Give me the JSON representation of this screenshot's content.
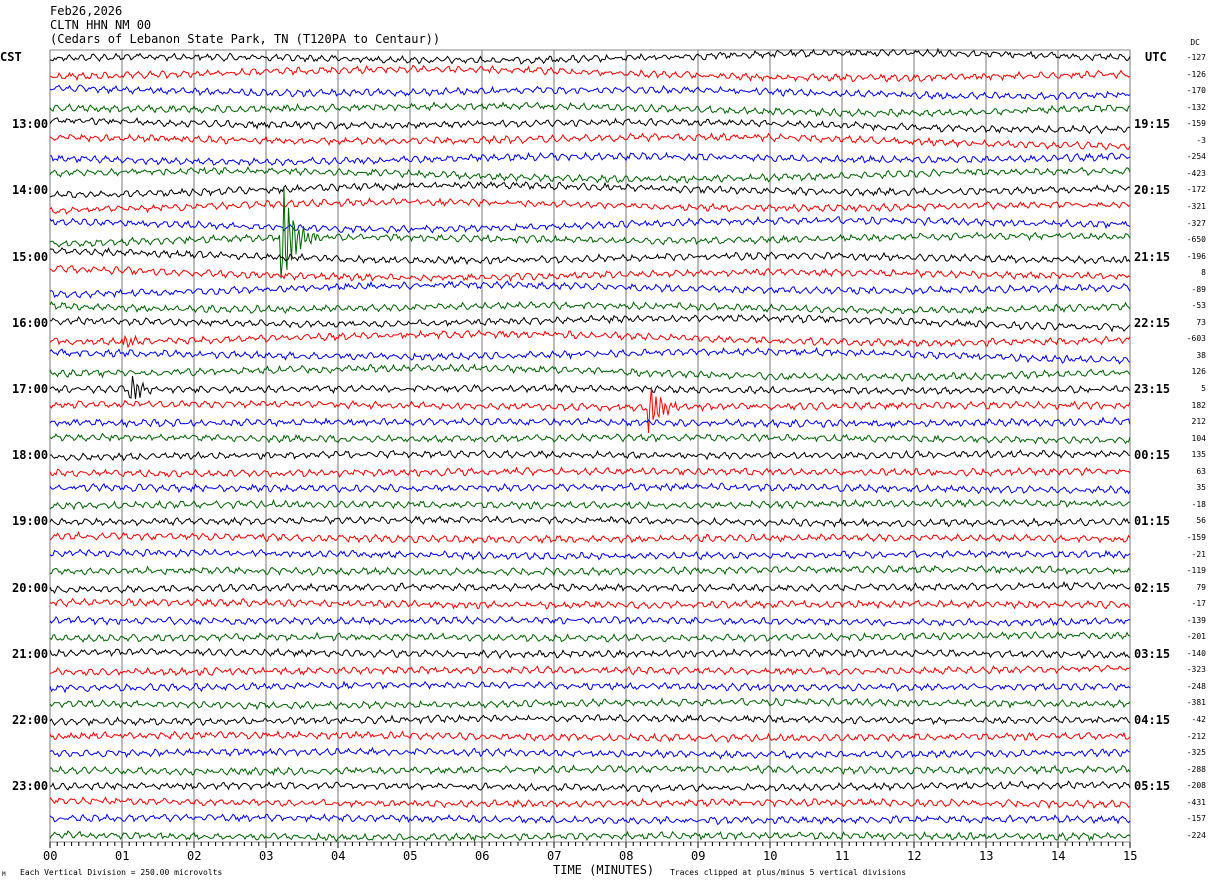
{
  "header": {
    "date": "Feb26,2026",
    "station": "CLTN HHN NM 00",
    "location": "(Cedars of Lebanon State Park, TN (T120PA to Centaur))"
  },
  "left_tz": "CST",
  "right_tz": "UTC",
  "dc_label": "DC",
  "footer": {
    "scale": "Each Vertical Division =  250.00 microvolts",
    "xlabel": "TIME (MINUTES)",
    "clip": "Traces clipped at plus/minus 5 vertical divisions",
    "corner": "M"
  },
  "chart_data": {
    "type": "line",
    "title": "CLTN HHN NM 00 helicorder Feb26,2026",
    "xlabel": "TIME (MINUTES)",
    "xlim": [
      0,
      15
    ],
    "x_ticks": [
      "00",
      "01",
      "02",
      "03",
      "04",
      "05",
      "06",
      "07",
      "08",
      "09",
      "10",
      "11",
      "12",
      "13",
      "14",
      "15"
    ],
    "minutes_per_line": 15,
    "trace_colors": [
      "#000000",
      "#ff0000",
      "#0000ff",
      "#006400"
    ],
    "left_labels": [
      {
        "row": 4,
        "text": "13:00"
      },
      {
        "row": 8,
        "text": "14:00"
      },
      {
        "row": 12,
        "text": "15:00"
      },
      {
        "row": 16,
        "text": "16:00"
      },
      {
        "row": 20,
        "text": "17:00"
      },
      {
        "row": 24,
        "text": "18:00"
      },
      {
        "row": 28,
        "text": "19:00"
      },
      {
        "row": 32,
        "text": "20:00"
      },
      {
        "row": 36,
        "text": "21:00"
      },
      {
        "row": 40,
        "text": "22:00"
      },
      {
        "row": 44,
        "text": "23:00"
      }
    ],
    "right_labels": [
      {
        "row": 4,
        "text": "19:15"
      },
      {
        "row": 8,
        "text": "20:15"
      },
      {
        "row": 12,
        "text": "21:15"
      },
      {
        "row": 16,
        "text": "22:15"
      },
      {
        "row": 20,
        "text": "23:15"
      },
      {
        "row": 24,
        "text": "00:15"
      },
      {
        "row": 28,
        "text": "01:15"
      },
      {
        "row": 32,
        "text": "02:15"
      },
      {
        "row": 36,
        "text": "03:15"
      },
      {
        "row": 40,
        "text": "04:15"
      },
      {
        "row": 44,
        "text": "05:15"
      }
    ],
    "dc_offsets": [
      "-127",
      "-126",
      "-170",
      "-132",
      "-159",
      "-3",
      "-254",
      "-423",
      "-172",
      "-321",
      "-327",
      "-650",
      "-196",
      "8",
      "-89",
      "-53",
      "73",
      "-603",
      "38",
      "126",
      "5",
      "182",
      "212",
      "104",
      "135",
      "63",
      "35",
      "-18",
      "56",
      "-159",
      "-21",
      "-119",
      "79",
      "-17",
      "-139",
      "-201",
      "-140",
      "-323",
      "-248",
      "-381",
      "-42",
      "-212",
      "-325",
      "-288",
      "-208",
      "-431",
      "-157",
      "-224"
    ],
    "events": [
      {
        "row": 11,
        "minute": 3.2,
        "amp": 8
      },
      {
        "row": 17,
        "minute": 1.0,
        "amp": 1
      },
      {
        "row": 20,
        "minute": 1.1,
        "amp": 1.8
      },
      {
        "row": 21,
        "minute": 8.3,
        "amp": 3.5
      }
    ]
  }
}
